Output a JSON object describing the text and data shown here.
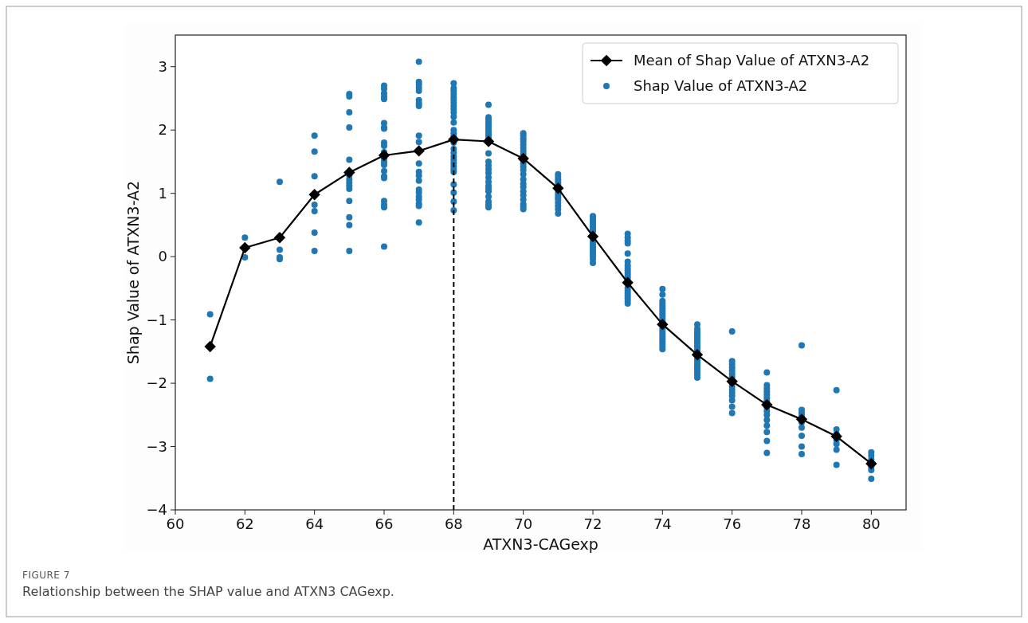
{
  "chart_data": {
    "type": "scatter",
    "xlabel": "ATXN3-CAGexp",
    "ylabel": "Shap Value of ATXN3-A2",
    "xlim": [
      60,
      81
    ],
    "xticks": [
      60,
      62,
      64,
      66,
      68,
      70,
      72,
      74,
      76,
      78,
      80
    ],
    "ylim": [
      -4,
      3.5
    ],
    "yticks": [
      {
        "value": -4,
        "label": "−4"
      },
      {
        "value": -3,
        "label": "−3"
      },
      {
        "value": -2,
        "label": "−2"
      },
      {
        "value": -1,
        "label": "−1"
      },
      0,
      1,
      2,
      3
    ],
    "legend": "top right",
    "grid": false,
    "ref_lines": [
      {
        "axis": "x",
        "value": 68,
        "color": "#000000",
        "line_style": "dashed"
      }
    ],
    "annotations": [
      "FIGURE 7",
      "Relationship between the SHAP value and ATXN3 CAGexp."
    ],
    "series": [
      {
        "name": "Mean of Shap Value of ATXN3-A2",
        "type": "line",
        "color": "#000000",
        "marker": "diamond",
        "line_style": "solid",
        "x": [
          61,
          62,
          63,
          64,
          65,
          66,
          67,
          68,
          69,
          70,
          71,
          72,
          73,
          74,
          75,
          76,
          77,
          78,
          79,
          80
        ],
        "values": [
          -1.42,
          0.14,
          0.3,
          0.98,
          1.33,
          1.6,
          1.67,
          1.85,
          1.82,
          1.55,
          1.08,
          0.32,
          -0.41,
          -1.07,
          -1.55,
          -1.97,
          -2.34,
          -2.57,
          -2.84,
          -3.27
        ]
      },
      {
        "name": "Shap Value of ATXN3-A2",
        "color": "#1f77b4",
        "marker": "circle",
        "x": [
          61,
          61,
          62,
          62,
          63,
          63,
          63,
          63,
          64,
          64,
          64,
          64,
          64,
          64,
          64,
          65,
          65,
          65,
          65,
          65,
          65,
          65,
          65,
          65,
          65,
          65,
          65,
          65,
          65,
          66,
          66,
          66,
          66,
          66,
          66,
          66,
          66,
          66,
          66,
          66,
          66,
          66,
          66,
          66,
          66,
          66,
          66,
          66,
          66,
          66,
          67,
          67,
          67,
          67,
          67,
          67,
          67,
          67,
          67,
          67,
          67,
          67,
          67,
          67,
          67,
          67,
          67,
          67,
          67,
          67,
          67,
          68,
          68,
          68,
          68,
          68,
          68,
          68,
          68,
          68,
          68,
          68,
          68,
          68,
          68,
          68,
          68,
          68,
          68,
          68,
          68,
          68,
          68,
          68,
          68,
          68,
          68,
          68,
          68,
          69,
          69,
          69,
          69,
          69,
          69,
          69,
          69,
          69,
          69,
          69,
          69,
          69,
          69,
          69,
          69,
          69,
          69,
          69,
          69,
          69,
          69,
          69,
          69,
          70,
          70,
          70,
          70,
          70,
          70,
          70,
          70,
          70,
          70,
          70,
          70,
          70,
          70,
          70,
          70,
          70,
          70,
          70,
          70,
          70,
          71,
          71,
          71,
          71,
          71,
          71,
          71,
          71,
          71,
          71,
          71,
          71,
          71,
          72,
          72,
          72,
          72,
          72,
          72,
          72,
          72,
          72,
          72,
          72,
          72,
          72,
          72,
          72,
          72,
          73,
          73,
          73,
          73,
          73,
          73,
          73,
          73,
          73,
          73,
          73,
          73,
          73,
          73,
          73,
          73,
          73,
          73,
          73,
          74,
          74,
          74,
          74,
          74,
          74,
          74,
          74,
          74,
          74,
          74,
          74,
          74,
          74,
          74,
          74,
          74,
          74,
          74,
          74,
          75,
          75,
          75,
          75,
          75,
          75,
          75,
          75,
          75,
          75,
          75,
          75,
          75,
          75,
          75,
          75,
          75,
          75,
          75,
          76,
          76,
          76,
          76,
          76,
          76,
          76,
          76,
          76,
          76,
          76,
          76,
          76,
          76,
          76,
          77,
          77,
          77,
          77,
          77,
          77,
          77,
          77,
          77,
          77,
          77,
          77,
          77,
          77,
          77,
          78,
          78,
          78,
          78,
          78,
          78,
          78,
          78,
          78,
          79,
          79,
          79,
          79,
          79,
          79,
          79,
          80,
          80,
          80,
          80,
          80,
          80
        ],
        "values": [
          -0.91,
          -1.93,
          0.3,
          -0.01,
          1.18,
          0.11,
          -0.01,
          -0.04,
          1.91,
          1.66,
          1.27,
          0.82,
          0.72,
          0.38,
          0.09,
          2.57,
          2.53,
          2.28,
          2.04,
          1.53,
          1.28,
          1.22,
          1.17,
          1.12,
          1.07,
          0.88,
          0.62,
          0.5,
          0.09,
          2.7,
          2.65,
          2.58,
          2.53,
          2.49,
          2.11,
          2.04,
          2.02,
          1.8,
          1.75,
          1.65,
          1.55,
          1.5,
          1.45,
          1.35,
          1.27,
          1.24,
          0.88,
          0.82,
          0.78,
          0.16,
          3.08,
          2.76,
          2.72,
          2.67,
          2.62,
          2.47,
          2.42,
          2.38,
          1.91,
          1.81,
          1.47,
          1.34,
          1.28,
          1.2,
          1.06,
          1.01,
          0.95,
          0.9,
          0.84,
          0.8,
          0.54,
          2.74,
          2.66,
          2.62,
          2.57,
          2.52,
          2.48,
          2.43,
          2.38,
          2.33,
          2.28,
          2.21,
          2.12,
          2.0,
          1.95,
          1.9,
          1.8,
          1.7,
          1.64,
          1.58,
          1.53,
          1.48,
          1.43,
          1.38,
          1.34,
          1.14,
          1.01,
          0.87,
          0.73,
          2.4,
          2.2,
          2.16,
          2.12,
          2.08,
          2.04,
          2.0,
          1.96,
          1.92,
          1.88,
          1.63,
          1.5,
          1.44,
          1.38,
          1.32,
          1.25,
          1.18,
          1.12,
          1.07,
          1.03,
          0.95,
          0.87,
          0.82,
          0.78,
          1.95,
          1.91,
          1.86,
          1.82,
          1.77,
          1.72,
          1.67,
          1.62,
          1.47,
          1.42,
          1.37,
          1.3,
          1.22,
          1.15,
          1.1,
          1.03,
          0.97,
          0.9,
          0.83,
          0.79,
          0.75,
          1.3,
          1.26,
          1.22,
          1.18,
          1.14,
          1.02,
          0.98,
          0.94,
          0.9,
          0.85,
          0.8,
          0.75,
          0.68,
          0.64,
          0.6,
          0.56,
          0.52,
          0.48,
          0.44,
          0.4,
          0.24,
          0.2,
          0.16,
          0.12,
          0.08,
          0.04,
          0.0,
          -0.04,
          -0.1,
          0.36,
          0.3,
          0.25,
          0.21,
          0.05,
          -0.08,
          -0.14,
          -0.18,
          -0.22,
          -0.26,
          -0.3,
          -0.34,
          -0.5,
          -0.54,
          -0.58,
          -0.62,
          -0.66,
          -0.7,
          -0.74,
          -0.51,
          -0.6,
          -0.7,
          -0.74,
          -0.78,
          -0.82,
          -0.86,
          -0.9,
          -0.94,
          -0.98,
          -1.02,
          -1.14,
          -1.18,
          -1.22,
          -1.26,
          -1.3,
          -1.34,
          -1.38,
          -1.42,
          -1.46,
          -1.07,
          -1.14,
          -1.18,
          -1.22,
          -1.26,
          -1.3,
          -1.34,
          -1.38,
          -1.42,
          -1.46,
          -1.5,
          -1.62,
          -1.66,
          -1.7,
          -1.74,
          -1.78,
          -1.82,
          -1.86,
          -1.91,
          -1.18,
          -1.65,
          -1.7,
          -1.75,
          -1.8,
          -1.85,
          -1.9,
          -2.0,
          -2.05,
          -2.1,
          -2.15,
          -2.2,
          -2.27,
          -2.37,
          -2.47,
          -1.83,
          -2.03,
          -2.08,
          -2.13,
          -2.18,
          -2.23,
          -2.28,
          -2.38,
          -2.44,
          -2.5,
          -2.58,
          -2.67,
          -2.77,
          -2.91,
          -3.1,
          -1.4,
          -2.42,
          -2.47,
          -2.52,
          -2.62,
          -2.7,
          -2.83,
          -3.0,
          -3.12,
          -2.11,
          -2.73,
          -2.8,
          -2.9,
          -2.96,
          -3.05,
          -3.29,
          -3.09,
          -3.14,
          -3.2,
          -3.33,
          -3.37,
          -3.51
        ]
      }
    ]
  }
}
